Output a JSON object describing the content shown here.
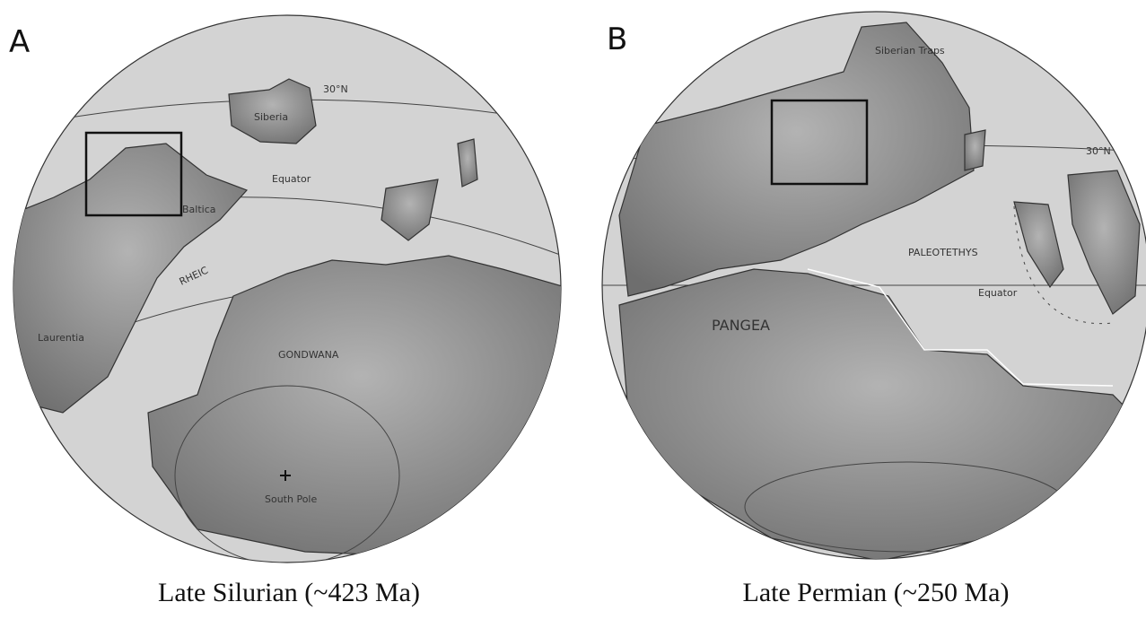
{
  "panels": [
    {
      "letter": "A",
      "caption": "Late Silurian (~423 Ma)",
      "labels": [
        "30°N",
        "Siberia",
        "Equator",
        "Baltica",
        "RHEIC",
        "Laurentia",
        "GONDWANA",
        "South Pole"
      ]
    },
    {
      "letter": "B",
      "caption": "Late Permian (~250 Ma)",
      "labels": [
        "Siberian Traps",
        "30°N",
        "PALEOTETHYS",
        "Equator",
        "PANGEA"
      ]
    }
  ]
}
